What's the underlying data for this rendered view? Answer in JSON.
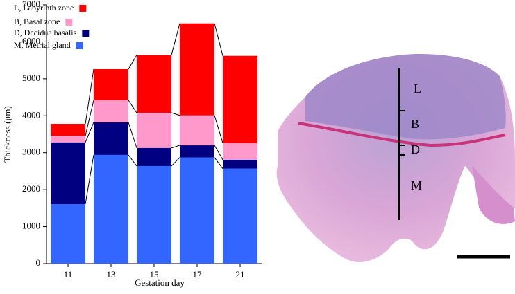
{
  "chart_data": {
    "type": "stacked_bar",
    "x_label": "Gestation day",
    "y_label": "Thickness (μm)",
    "categories": [
      "11",
      "13",
      "15",
      "17",
      "21"
    ],
    "series": [
      {
        "name": "L, Labyrinth zone",
        "color": "#ff0000",
        "values": [
          320,
          840,
          1560,
          2490,
          2360
        ]
      },
      {
        "name": "B, Basal zone",
        "color": "#ff99cc",
        "values": [
          180,
          600,
          950,
          810,
          450
        ]
      },
      {
        "name": "D, Decidua basalis",
        "color": "#000080",
        "values": [
          1670,
          880,
          490,
          330,
          240
        ]
      },
      {
        "name": "M, Metrial gland",
        "color": "#3366ff",
        "values": [
          1610,
          2940,
          2640,
          2870,
          2570
        ]
      }
    ],
    "ylim": [
      0,
      7000
    ],
    "yticks": [
      0,
      1000,
      2000,
      3000,
      4000,
      5000,
      6000,
      7000
    ],
    "legend": "upper left",
    "image_labels": [
      "L",
      "B",
      "D",
      "M"
    ]
  }
}
